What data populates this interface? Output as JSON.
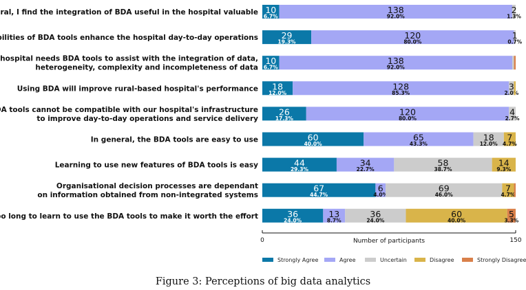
{
  "chart_data": {
    "type": "bar",
    "orientation": "horizontal",
    "stacked": true,
    "title": "",
    "xlabel": "Number of participants",
    "xlim": [
      0,
      150
    ],
    "xticks": [
      "0",
      "150"
    ],
    "grid": false,
    "legend_position": "bottom",
    "categories": [
      [
        "In general, I find the integration of BDA useful in the hospital valuable"
      ],
      [
        "The capabilities of BDA tools enhance the hospital day-to-day operations"
      ],
      [
        "The hospital needs BDA tools to assist with the integration of data,",
        "heterogeneity, complexity and incompleteness of data"
      ],
      [
        "Using BDA will improve rural-based hospital's performance"
      ],
      [
        "BDA tools cannot be compatible with our hospital's infrastructure",
        "to improve day-to-day operations and service delivery"
      ],
      [
        "In general, the BDA tools are easy to use"
      ],
      [
        "Learning to use new features of BDA tools is easy"
      ],
      [
        "Organisational decision processes are dependant",
        "on information obtained from non-integrated systems"
      ],
      [
        "It takes too long to learn to use the BDA tools to make it worth the effort"
      ]
    ],
    "series": [
      {
        "name": "Strongly Agree",
        "color": "#0b78a8",
        "text_color": "#ffffff",
        "values": [
          10,
          29,
          10,
          18,
          26,
          60,
          44,
          67,
          36
        ],
        "percents": [
          "6.7%",
          "19.3%",
          "6.7%",
          "12.0%",
          "17.3%",
          "40.0%",
          "29.3%",
          "44.7%",
          "24.0%"
        ]
      },
      {
        "name": "Agree",
        "color": "#a4a7f5",
        "text_color": "#111111",
        "values": [
          138,
          120,
          138,
          128,
          120,
          65,
          34,
          6,
          13
        ],
        "percents": [
          "92.0%",
          "80.0%",
          "92.0%",
          "85.3%",
          "80.0%",
          "43.3%",
          "22.7%",
          "4.0%",
          "8.7%"
        ]
      },
      {
        "name": "Uncertain",
        "color": "#cccccc",
        "text_color": "#111111",
        "values": [
          2,
          1,
          1,
          3,
          4,
          18,
          58,
          69,
          36
        ],
        "percents": [
          "1.3%",
          "0.7%",
          null,
          "2.0%",
          "2.7%",
          "12.0%",
          "38.7%",
          "46.0%",
          "24.0%"
        ]
      },
      {
        "name": "Disagree",
        "color": "#d9b44a",
        "text_color": "#111111",
        "values": [
          0,
          0,
          0,
          1,
          0,
          7,
          14,
          7,
          60
        ],
        "percents": [
          null,
          null,
          null,
          null,
          null,
          "4.7%",
          "9.3%",
          "4.7%",
          "40.0%"
        ]
      },
      {
        "name": "Strongly Disagree",
        "color": "#d9804a",
        "text_color": "#111111",
        "values": [
          0,
          0,
          1,
          0,
          0,
          0,
          0,
          1,
          5
        ],
        "percents": [
          null,
          null,
          null,
          null,
          null,
          null,
          null,
          null,
          "3.3%"
        ]
      }
    ]
  },
  "caption": "Figure 3: Perceptions of big data analytics"
}
